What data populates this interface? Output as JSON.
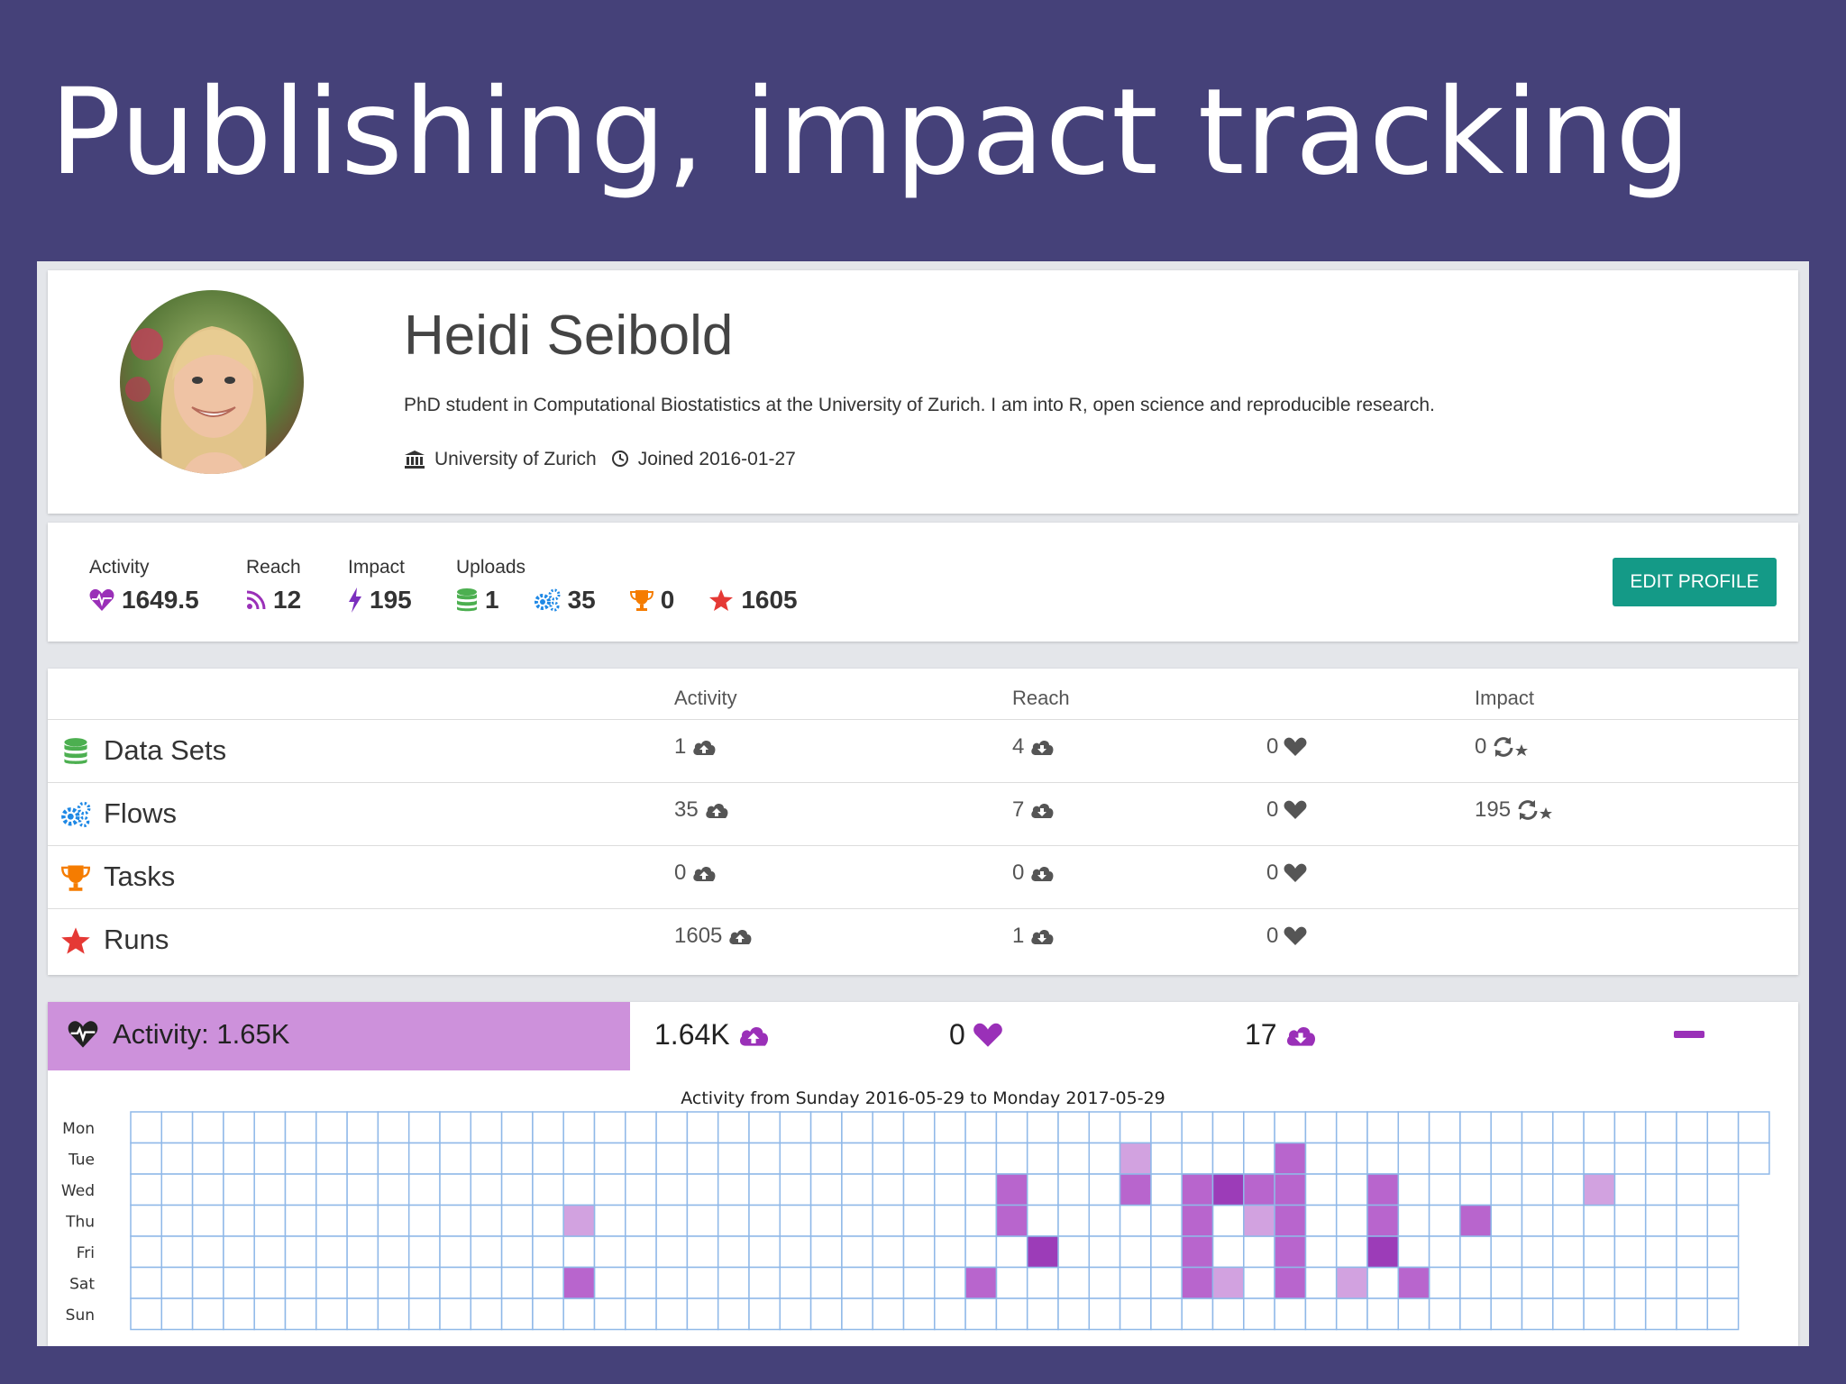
{
  "slide": {
    "title": "Publishing, impact tracking"
  },
  "profile": {
    "name": "Heidi Seibold",
    "bio": "PhD student in Computational Biostatistics at the University of Zurich. I am into R, open science and reproducible research.",
    "affiliation": "University of Zurich",
    "joined": "Joined 2016-01-27"
  },
  "stats": {
    "activity": {
      "label": "Activity",
      "value": "1649.5"
    },
    "reach": {
      "label": "Reach",
      "value": "12"
    },
    "impact": {
      "label": "Impact",
      "value": "195"
    },
    "uploads": {
      "label": "Uploads",
      "datasets": "1",
      "flows": "35",
      "tasks": "0",
      "runs": "1605"
    },
    "edit_button": "EDIT PROFILE"
  },
  "table": {
    "headers": {
      "activity": "Activity",
      "reach": "Reach",
      "impact": "Impact"
    },
    "rows": [
      {
        "name": "Data Sets",
        "icon": "database-icon",
        "color": "#4caf50",
        "activity": "1",
        "reach": "4",
        "likes": "0",
        "impact": "0"
      },
      {
        "name": "Flows",
        "icon": "cogs-icon",
        "color": "#1e88e5",
        "activity": "35",
        "reach": "7",
        "likes": "0",
        "impact": "195"
      },
      {
        "name": "Tasks",
        "icon": "trophy-icon",
        "color": "#f57c00",
        "activity": "0",
        "reach": "0",
        "likes": "0",
        "impact": ""
      },
      {
        "name": "Runs",
        "icon": "star-icon",
        "color": "#e53935",
        "activity": "1605",
        "reach": "1",
        "likes": "0",
        "impact": ""
      }
    ]
  },
  "activity_panel": {
    "label": "Activity: 1.65K",
    "uploads": "1.64K",
    "likes": "0",
    "downloads": "17",
    "caption": "Activity from Sunday 2016-05-29 to Monday 2017-05-29",
    "days": [
      "Mon",
      "Tue",
      "Wed",
      "Thu",
      "Fri",
      "Sat",
      "Sun"
    ],
    "cells": [
      {
        "week": 14,
        "day": 3,
        "level": 1
      },
      {
        "week": 14,
        "day": 5,
        "level": 2
      },
      {
        "week": 27,
        "day": 5,
        "level": 2
      },
      {
        "week": 28,
        "day": 2,
        "level": 2
      },
      {
        "week": 28,
        "day": 3,
        "level": 2
      },
      {
        "week": 29,
        "day": 4,
        "level": 3
      },
      {
        "week": 32,
        "day": 1,
        "level": 1
      },
      {
        "week": 32,
        "day": 2,
        "level": 2
      },
      {
        "week": 34,
        "day": 2,
        "level": 2
      },
      {
        "week": 34,
        "day": 3,
        "level": 2
      },
      {
        "week": 34,
        "day": 4,
        "level": 2
      },
      {
        "week": 34,
        "day": 5,
        "level": 2
      },
      {
        "week": 35,
        "day": 2,
        "level": 3
      },
      {
        "week": 35,
        "day": 5,
        "level": 1
      },
      {
        "week": 36,
        "day": 2,
        "level": 2
      },
      {
        "week": 36,
        "day": 3,
        "level": 1
      },
      {
        "week": 37,
        "day": 1,
        "level": 2
      },
      {
        "week": 37,
        "day": 2,
        "level": 2
      },
      {
        "week": 37,
        "day": 3,
        "level": 2
      },
      {
        "week": 37,
        "day": 4,
        "level": 2
      },
      {
        "week": 37,
        "day": 5,
        "level": 2
      },
      {
        "week": 39,
        "day": 5,
        "level": 1
      },
      {
        "week": 40,
        "day": 2,
        "level": 2
      },
      {
        "week": 40,
        "day": 3,
        "level": 2
      },
      {
        "week": 40,
        "day": 4,
        "level": 3
      },
      {
        "week": 41,
        "day": 5,
        "level": 2
      },
      {
        "week": 43,
        "day": 3,
        "level": 2
      },
      {
        "week": 47,
        "day": 2,
        "level": 1
      }
    ],
    "colors": {
      "level1": "#d2a2e0",
      "level2": "#b865cd",
      "level3": "#9c3cb8"
    }
  },
  "colors": {
    "background": "#454179",
    "accent": "#149a87",
    "activity": "#9a30b8",
    "impact": "#7b2fbe"
  }
}
